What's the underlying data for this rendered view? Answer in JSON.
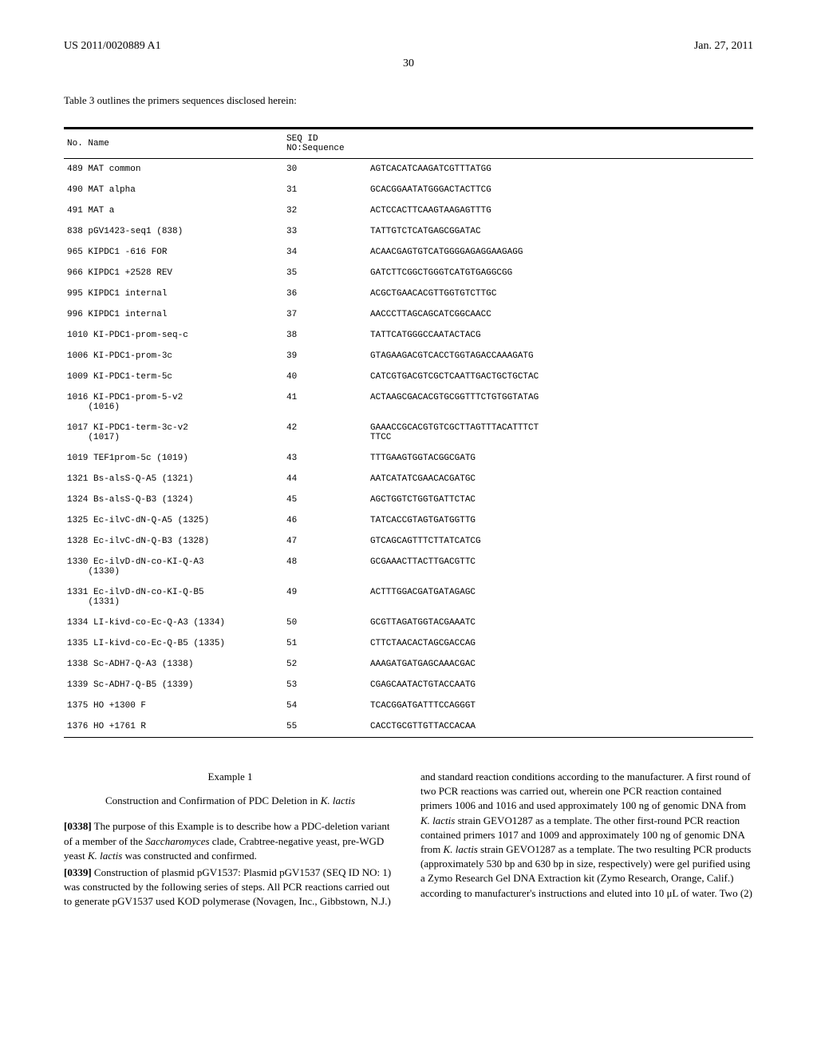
{
  "header": {
    "doc_id": "US 2011/0020889 A1",
    "date": "Jan. 27, 2011",
    "page_number": "30"
  },
  "table_intro": "Table 3 outlines the primers sequences disclosed herein:",
  "table": {
    "headers": {
      "no_name": "No. Name",
      "seq_id": "SEQ ID NO:",
      "sequence": "Sequence"
    },
    "rows": [
      {
        "no": "489",
        "name": "MAT common",
        "seq_id": "30",
        "sequence": "AGTCACATCAAGATCGTTTATGG"
      },
      {
        "no": "490",
        "name": "MAT alpha",
        "seq_id": "31",
        "sequence": "GCACGGAATATGGGACTACTTCG"
      },
      {
        "no": "491",
        "name": "MAT a",
        "seq_id": "32",
        "sequence": "ACTCCACTTCAAGTAAGAGTTTG"
      },
      {
        "no": "838",
        "name": "pGV1423-seq1 (838)",
        "seq_id": "33",
        "sequence": "TATTGTCTCATGAGCGGATAC"
      },
      {
        "no": "965",
        "name": "KIPDC1 -616 FOR",
        "seq_id": "34",
        "sequence": "ACAACGAGTGTCATGGGGAGAGGAAGAGG"
      },
      {
        "no": "966",
        "name": "KIPDC1 +2528 REV",
        "seq_id": "35",
        "sequence": "GATCTTCGGCTGGGTCATGTGAGGCGG"
      },
      {
        "no": "995",
        "name": "KIPDC1 internal",
        "seq_id": "36",
        "sequence": "ACGCTGAACACGTTGGTGTCTTGC"
      },
      {
        "no": "996",
        "name": "KIPDC1 internal",
        "seq_id": "37",
        "sequence": "AACCCTTAGCAGCATCGGCAACC"
      },
      {
        "no": "1010",
        "name": "KI-PDC1-prom-seq-c",
        "seq_id": "38",
        "sequence": "TATTCATGGGCCAATACTACG"
      },
      {
        "no": "1006",
        "name": "KI-PDC1-prom-3c",
        "seq_id": "39",
        "sequence": "GTAGAAGACGTCACCTGGTAGACCAAAGATG"
      },
      {
        "no": "1009",
        "name": "KI-PDC1-term-5c",
        "seq_id": "40",
        "sequence": "CATCGTGACGTCGCTCAATTGACTGCTGCTAC"
      },
      {
        "no": "1016",
        "name": "KI-PDC1-prom-5-v2\n(1016)",
        "seq_id": "41",
        "sequence": "ACTAAGCGACACGTGCGGTTTCTGTGGTATAG"
      },
      {
        "no": "1017",
        "name": "KI-PDC1-term-3c-v2\n(1017)",
        "seq_id": "42",
        "sequence": "GAAACCGCACGTGTCGCTTAGTTTACATTTCT\nTTCC"
      },
      {
        "no": "1019",
        "name": "TEF1prom-5c (1019)",
        "seq_id": "43",
        "sequence": "TTTGAAGTGGTACGGCGATG"
      },
      {
        "no": "1321",
        "name": "Bs-alsS-Q-A5 (1321)",
        "seq_id": "44",
        "sequence": "AATCATATCGAACACGATGC"
      },
      {
        "no": "1324",
        "name": "Bs-alsS-Q-B3 (1324)",
        "seq_id": "45",
        "sequence": "AGCTGGTCTGGTGATTCTAC"
      },
      {
        "no": "1325",
        "name": "Ec-ilvC-dN-Q-A5 (1325)",
        "seq_id": "46",
        "sequence": "TATCACCGTAGTGATGGTTG"
      },
      {
        "no": "1328",
        "name": "Ec-ilvC-dN-Q-B3 (1328)",
        "seq_id": "47",
        "sequence": "GTCAGCAGTTTCTTATCATCG"
      },
      {
        "no": "1330",
        "name": "Ec-ilvD-dN-co-KI-Q-A3\n(1330)",
        "seq_id": "48",
        "sequence": "GCGAAACTTACTTGACGTTC"
      },
      {
        "no": "1331",
        "name": "Ec-ilvD-dN-co-KI-Q-B5\n(1331)",
        "seq_id": "49",
        "sequence": "ACTTTGGACGATGATAGAGC"
      },
      {
        "no": "1334",
        "name": "LI-kivd-co-Ec-Q-A3 (1334)",
        "seq_id": "50",
        "sequence": "GCGTTAGATGGTACGAAATC"
      },
      {
        "no": "1335",
        "name": "LI-kivd-co-Ec-Q-B5 (1335)",
        "seq_id": "51",
        "sequence": "CTTCTAACACTAGCGACCAG"
      },
      {
        "no": "1338",
        "name": "Sc-ADH7-Q-A3 (1338)",
        "seq_id": "52",
        "sequence": "AAAGATGATGAGCAAACGAC"
      },
      {
        "no": "1339",
        "name": "Sc-ADH7-Q-B5 (1339)",
        "seq_id": "53",
        "sequence": "CGAGCAATACTGTACCAATG"
      },
      {
        "no": "1375",
        "name": "HO +1300 F",
        "seq_id": "54",
        "sequence": "TCACGGATGATTTCCAGGGT"
      },
      {
        "no": "1376",
        "name": "HO +1761 R",
        "seq_id": "55",
        "sequence": "CACCTGCGTTGTTACCACAA"
      }
    ]
  },
  "example": {
    "title": "Example 1",
    "subtitle_prefix": "Construction and Confirmation of PDC Deletion in ",
    "subtitle_italic": "K. lactis",
    "para1_label": "[0338]",
    "para1_text": " The purpose of this Example is to describe how a PDC-deletion variant of a member of the ",
    "para1_italic1": "Saccharomyces",
    "para1_text2": " clade, Crabtree-negative yeast, pre-WGD yeast ",
    "para1_italic2": "K. lactis",
    "para1_text3": " was constructed and confirmed.",
    "para2_label": "[0339]",
    "para2_text": " Construction of plasmid pGV1537: Plasmid pGV1537 (SEQ ID NO: 1) was constructed by the following series of steps. All PCR reactions carried out to generate pGV1537 used KOD polymerase (Novagen, Inc., Gibbstown, N.J.) and standard reaction conditions according to the manufacturer. A first round of two PCR reactions was carried out, wherein one PCR reaction contained primers 1006 and 1016 and used approximately 100 ng of genomic DNA from ",
    "para2_italic1": "K. lactis",
    "para2_text2": " strain GEVO1287 as a template. The other first-round PCR reaction contained primers 1017 and 1009 and approximately 100 ng of genomic DNA from ",
    "para2_italic2": "K. lactis",
    "para2_text3": " strain GEVO1287 as a template. The two resulting PCR products (approximately 530 bp and 630 bp in size, respectively) were gel purified using a Zymo Research Gel DNA Extraction kit (Zymo Research, Orange, Calif.) according to manufacturer's instructions and eluted into 10 μL of water. Two (2)"
  }
}
